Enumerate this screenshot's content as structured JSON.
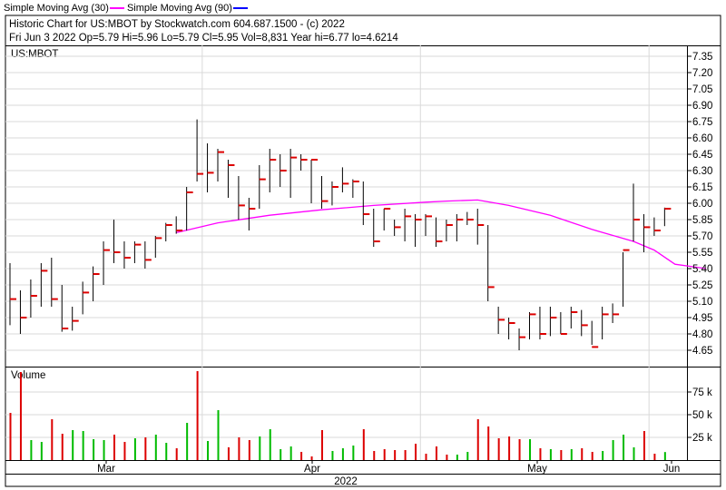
{
  "legend": [
    {
      "label": "Simple Moving Avg (30)",
      "color": "#ff00ff"
    },
    {
      "label": "Simple Moving Avg (90)",
      "color": "#0000ff"
    }
  ],
  "header": {
    "line1": "Historic Chart for US:MBOT by Stockwatch.com 604.687.1500 - (c) 2022",
    "line2": "Fri Jun  3 2022  Op=5.79  Hi=5.96  Lo=5.79  Cl=5.95  Vol=8,831  Year hi=6.77  lo=4.6214"
  },
  "colors": {
    "up": "#00bb00",
    "down": "#dd0000",
    "close_tick": "#dd0000",
    "sma30": "#ff00ff",
    "grid": "#d9d9d9",
    "bar": "#000000"
  },
  "chart_data": {
    "type": "ohlc",
    "symbol": "US:MBOT",
    "price_axis": {
      "ylim": [
        4.5,
        7.45
      ],
      "ticks": [
        "7.35",
        "7.20",
        "7.05",
        "6.90",
        "6.75",
        "6.60",
        "6.45",
        "6.30",
        "6.15",
        "6.00",
        "5.85",
        "5.70",
        "5.55",
        "5.40",
        "5.25",
        "5.10",
        "4.95",
        "4.80",
        "4.65"
      ]
    },
    "volume_axis": {
      "label": "Volume",
      "ylim": [
        0,
        100000
      ],
      "ticks": [
        {
          "v": 75000,
          "label": "75 k"
        },
        {
          "v": 50000,
          "label": "50 k"
        },
        {
          "v": 25000,
          "label": "25 k"
        }
      ]
    },
    "x_months": [
      "Mar",
      "Apr",
      "May",
      "Jun"
    ],
    "x_year": "2022",
    "bars": [
      {
        "h": 5.45,
        "l": 4.88,
        "c": 5.12,
        "v": 52000,
        "up": false
      },
      {
        "h": 5.2,
        "l": 4.8,
        "c": 4.95,
        "v": 97000,
        "up": false
      },
      {
        "h": 5.3,
        "l": 4.95,
        "c": 5.15,
        "v": 22000,
        "up": true
      },
      {
        "h": 5.45,
        "l": 5.05,
        "c": 5.38,
        "v": 20000,
        "up": true
      },
      {
        "h": 5.5,
        "l": 5.05,
        "c": 5.12,
        "v": 45000,
        "up": false
      },
      {
        "h": 5.25,
        "l": 4.82,
        "c": 4.85,
        "v": 29000,
        "up": false
      },
      {
        "h": 5.05,
        "l": 4.83,
        "c": 4.92,
        "v": 33000,
        "up": true
      },
      {
        "h": 5.28,
        "l": 4.98,
        "c": 5.18,
        "v": 32000,
        "up": true
      },
      {
        "h": 5.42,
        "l": 5.1,
        "c": 5.35,
        "v": 23000,
        "up": true
      },
      {
        "h": 5.65,
        "l": 5.25,
        "c": 5.57,
        "v": 22000,
        "up": true
      },
      {
        "h": 5.85,
        "l": 5.45,
        "c": 5.55,
        "v": 28000,
        "up": false
      },
      {
        "h": 5.65,
        "l": 5.4,
        "c": 5.5,
        "v": 20000,
        "up": false
      },
      {
        "h": 5.65,
        "l": 5.45,
        "c": 5.62,
        "v": 24000,
        "up": true
      },
      {
        "h": 5.65,
        "l": 5.4,
        "c": 5.48,
        "v": 25000,
        "up": false
      },
      {
        "h": 5.7,
        "l": 5.5,
        "c": 5.68,
        "v": 28000,
        "up": true
      },
      {
        "h": 5.82,
        "l": 5.65,
        "c": 5.8,
        "v": 19000,
        "up": true
      },
      {
        "h": 5.88,
        "l": 5.72,
        "c": 5.75,
        "v": 13000,
        "up": false
      },
      {
        "h": 6.15,
        "l": 5.75,
        "c": 6.1,
        "v": 41000,
        "up": true
      },
      {
        "h": 6.77,
        "l": 6.2,
        "c": 6.27,
        "v": 98000,
        "up": false
      },
      {
        "h": 6.55,
        "l": 6.1,
        "c": 6.28,
        "v": 21000,
        "up": true
      },
      {
        "h": 6.5,
        "l": 6.2,
        "c": 6.47,
        "v": 55000,
        "up": true
      },
      {
        "h": 6.4,
        "l": 6.05,
        "c": 6.35,
        "v": 14000,
        "up": false
      },
      {
        "h": 6.25,
        "l": 5.85,
        "c": 5.98,
        "v": 25000,
        "up": false
      },
      {
        "h": 6.05,
        "l": 5.75,
        "c": 5.95,
        "v": 22000,
        "up": false
      },
      {
        "h": 6.35,
        "l": 5.95,
        "c": 6.22,
        "v": 26000,
        "up": true
      },
      {
        "h": 6.5,
        "l": 6.1,
        "c": 6.4,
        "v": 34000,
        "up": true
      },
      {
        "h": 6.45,
        "l": 6.15,
        "c": 6.3,
        "v": 12000,
        "up": true
      },
      {
        "h": 6.5,
        "l": 6.05,
        "c": 6.42,
        "v": 15000,
        "up": true
      },
      {
        "h": 6.45,
        "l": 6.3,
        "c": 6.4,
        "v": 9000,
        "up": false
      },
      {
        "h": 6.4,
        "l": 6.0,
        "c": 6.4,
        "v": 4000,
        "up": false
      },
      {
        "h": 6.25,
        "l": 5.95,
        "c": 6.02,
        "v": 33000,
        "up": false
      },
      {
        "h": 6.2,
        "l": 5.98,
        "c": 6.15,
        "v": 10000,
        "up": true
      },
      {
        "h": 6.33,
        "l": 6.1,
        "c": 6.18,
        "v": 13000,
        "up": true
      },
      {
        "h": 6.22,
        "l": 6.05,
        "c": 6.2,
        "v": 16000,
        "up": true
      },
      {
        "h": 6.2,
        "l": 5.8,
        "c": 5.9,
        "v": 34000,
        "up": false
      },
      {
        "h": 5.95,
        "l": 5.6,
        "c": 5.65,
        "v": 10000,
        "up": false
      },
      {
        "h": 5.95,
        "l": 5.75,
        "c": 5.95,
        "v": 12000,
        "up": false
      },
      {
        "h": 5.85,
        "l": 5.7,
        "c": 5.78,
        "v": 11000,
        "up": false
      },
      {
        "h": 5.95,
        "l": 5.65,
        "c": 5.88,
        "v": 11000,
        "up": false
      },
      {
        "h": 5.9,
        "l": 5.6,
        "c": 5.85,
        "v": 18000,
        "up": false
      },
      {
        "h": 5.9,
        "l": 5.7,
        "c": 5.88,
        "v": 7000,
        "up": false
      },
      {
        "h": 5.87,
        "l": 5.6,
        "c": 5.65,
        "v": 15000,
        "up": false
      },
      {
        "h": 5.85,
        "l": 5.65,
        "c": 5.8,
        "v": 6000,
        "up": false
      },
      {
        "h": 5.9,
        "l": 5.65,
        "c": 5.85,
        "v": 6000,
        "up": true
      },
      {
        "h": 5.92,
        "l": 5.8,
        "c": 5.85,
        "v": 9000,
        "up": true
      },
      {
        "h": 5.95,
        "l": 5.62,
        "c": 5.8,
        "v": 45000,
        "up": false
      },
      {
        "h": 5.8,
        "l": 5.1,
        "c": 5.23,
        "v": 37000,
        "up": false
      },
      {
        "h": 5.05,
        "l": 4.8,
        "c": 4.93,
        "v": 24000,
        "up": false
      },
      {
        "h": 4.95,
        "l": 4.75,
        "c": 4.9,
        "v": 26000,
        "up": false
      },
      {
        "h": 4.85,
        "l": 4.65,
        "c": 4.77,
        "v": 23000,
        "up": false
      },
      {
        "h": 5.0,
        "l": 4.75,
        "c": 4.98,
        "v": 23000,
        "up": true
      },
      {
        "h": 5.05,
        "l": 4.75,
        "c": 4.8,
        "v": 13000,
        "up": false
      },
      {
        "h": 5.05,
        "l": 4.78,
        "c": 4.95,
        "v": 12000,
        "up": true
      },
      {
        "h": 5.0,
        "l": 4.8,
        "c": 4.8,
        "v": 11000,
        "up": false
      },
      {
        "h": 5.05,
        "l": 4.85,
        "c": 5.0,
        "v": 12000,
        "up": true
      },
      {
        "h": 5.02,
        "l": 4.78,
        "c": 4.88,
        "v": 13000,
        "up": false
      },
      {
        "h": 4.92,
        "l": 4.7,
        "c": 4.68,
        "v": 9000,
        "up": false
      },
      {
        "h": 5.05,
        "l": 4.75,
        "c": 4.98,
        "v": 10000,
        "up": true
      },
      {
        "h": 5.08,
        "l": 4.9,
        "c": 4.98,
        "v": 22000,
        "up": true
      },
      {
        "h": 5.55,
        "l": 5.05,
        "c": 5.57,
        "v": 28000,
        "up": true
      },
      {
        "h": 6.18,
        "l": 5.65,
        "c": 5.85,
        "v": 14000,
        "up": true
      },
      {
        "h": 5.9,
        "l": 5.55,
        "c": 5.78,
        "v": 32000,
        "up": false
      },
      {
        "h": 5.87,
        "l": 5.7,
        "c": 5.75,
        "v": 7000,
        "up": false
      },
      {
        "h": 5.96,
        "l": 5.79,
        "c": 5.95,
        "v": 8831,
        "up": true
      }
    ],
    "sma30": [
      [
        16,
        5.73
      ],
      [
        20,
        5.82
      ],
      [
        25,
        5.89
      ],
      [
        30,
        5.94
      ],
      [
        35,
        5.98
      ],
      [
        40,
        6.01
      ],
      [
        42,
        6.02
      ],
      [
        45,
        6.03
      ],
      [
        48,
        5.98
      ],
      [
        52,
        5.89
      ],
      [
        56,
        5.76
      ],
      [
        60,
        5.65
      ],
      [
        62,
        5.57
      ],
      [
        64,
        5.44
      ],
      [
        67,
        5.4
      ]
    ]
  }
}
